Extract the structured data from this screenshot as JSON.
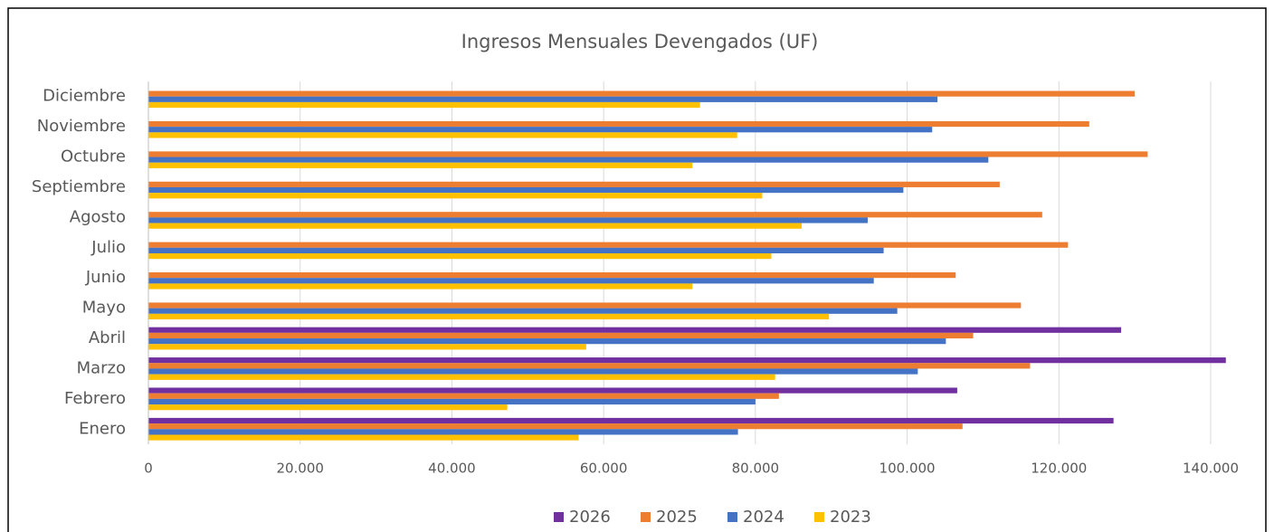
{
  "chart_data": {
    "type": "hbar",
    "title": "Ingresos Mensuales Devengados (UF)",
    "categories": [
      "Enero",
      "Febrero",
      "Marzo",
      "Abril",
      "Mayo",
      "Junio",
      "Julio",
      "Agosto",
      "Septiembre",
      "Octubre",
      "Noviembre",
      "Diciembre"
    ],
    "series": [
      {
        "name": "2026",
        "color": "#7030a0",
        "values": [
          127200,
          106600,
          142000,
          128200,
          null,
          null,
          null,
          null,
          null,
          null,
          null,
          null
        ]
      },
      {
        "name": "2025",
        "color": "#ed7d31",
        "values": [
          107300,
          83100,
          116200,
          108700,
          115000,
          106400,
          121200,
          117800,
          112200,
          131700,
          124000,
          130000
        ]
      },
      {
        "name": "2024",
        "color": "#4472c4",
        "values": [
          77700,
          80000,
          101400,
          105100,
          98700,
          95600,
          96900,
          94800,
          99500,
          110700,
          103300,
          104000
        ]
      },
      {
        "name": "2023",
        "color": "#ffc000",
        "values": [
          56700,
          47300,
          82600,
          57700,
          89700,
          71700,
          82100,
          86100,
          80900,
          71700,
          77600,
          72700
        ]
      }
    ],
    "xlim": [
      0,
      140000
    ],
    "xticks": [
      0,
      {
        "value": 20000,
        "label": "20.000"
      },
      {
        "value": 40000,
        "label": "40.000"
      },
      {
        "value": 60000,
        "label": "60.000"
      },
      {
        "value": 80000,
        "label": "80.000"
      },
      {
        "value": 100000,
        "label": "100.000"
      },
      {
        "value": 120000,
        "label": "120.000"
      },
      {
        "value": 140000,
        "label": "140.000"
      }
    ],
    "grid": true,
    "legend": "bottom"
  }
}
